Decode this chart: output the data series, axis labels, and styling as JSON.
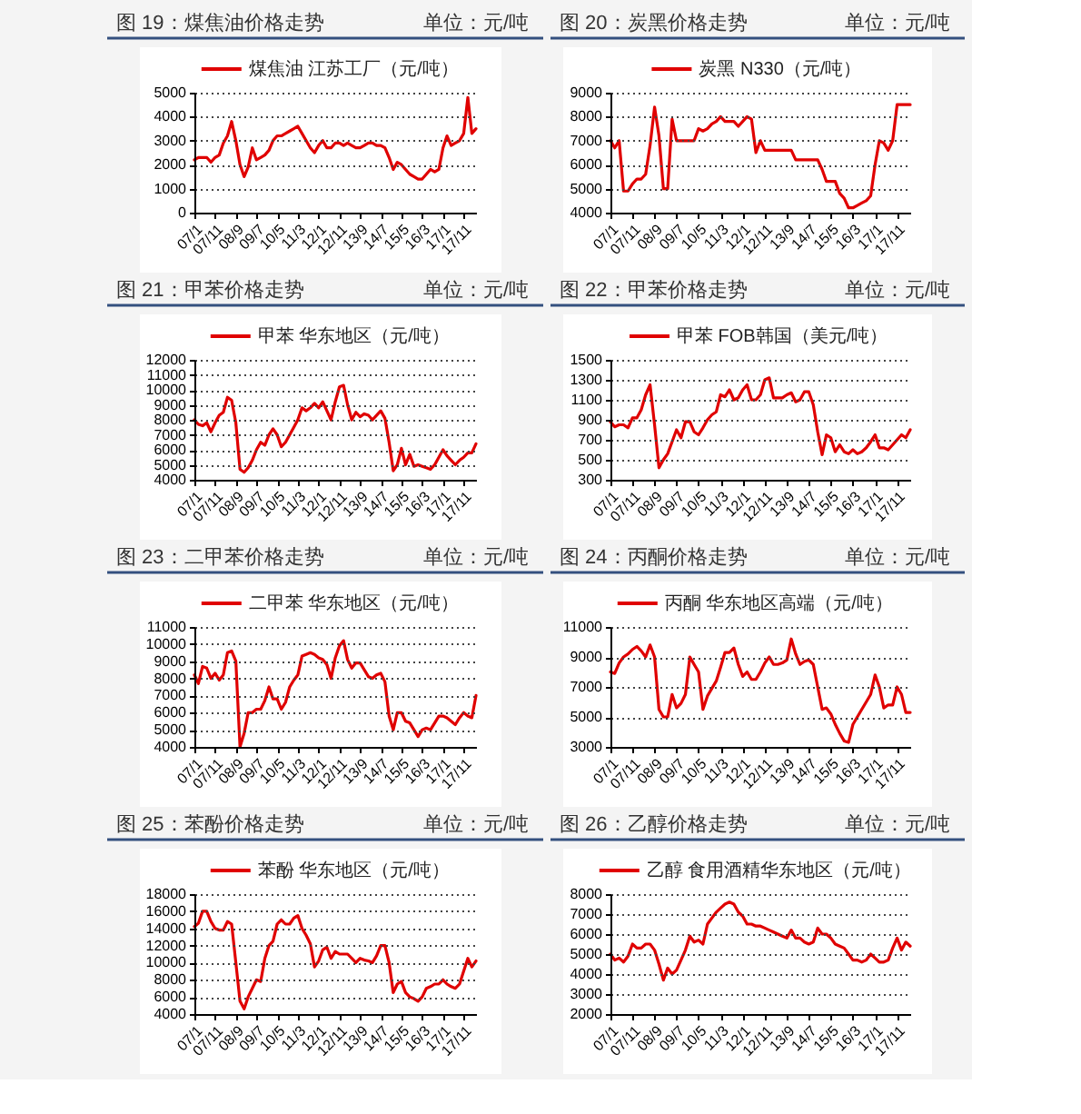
{
  "chart_data": [
    {
      "type": "line",
      "title": "图 19：煤焦油价格走势",
      "subtitle": "单位：元/吨",
      "grid": "y",
      "legend": "top",
      "x": [
        "2007-01",
        "2007-03",
        "2007-05",
        "2007-07",
        "2007-09",
        "2007-11",
        "2008-01",
        "2008-03",
        "2008-05",
        "2008-07",
        "2008-09",
        "2008-11",
        "2009-01",
        "2009-03",
        "2009-05",
        "2009-07",
        "2009-09",
        "2009-11",
        "2010-01",
        "2010-03",
        "2010-05",
        "2010-07",
        "2010-09",
        "2010-11",
        "2011-01",
        "2011-03",
        "2011-05",
        "2011-07",
        "2011-09",
        "2011-11",
        "2012-01",
        "2012-03",
        "2012-05",
        "2012-07",
        "2012-09",
        "2012-11",
        "2013-01",
        "2013-03",
        "2013-05",
        "2013-07",
        "2013-09",
        "2013-11",
        "2014-01",
        "2014-03",
        "2014-05",
        "2014-07",
        "2014-09",
        "2014-11",
        "2015-01",
        "2015-03",
        "2015-05",
        "2015-07",
        "2015-09",
        "2015-11",
        "2016-01",
        "2016-03",
        "2016-05",
        "2016-07",
        "2016-09",
        "2016-11",
        "2017-01",
        "2017-03",
        "2017-05",
        "2017-07",
        "2017-09",
        "2017-11",
        "2018-01",
        "2018-03",
        "2018-05"
      ],
      "xlim": [
        "2007-01",
        "2018-05"
      ],
      "xticks": [
        {
          "value": "2007-01",
          "label": "07/1"
        },
        {
          "value": "2007-11",
          "label": "07/11"
        },
        {
          "value": "2008-09",
          "label": "08/9"
        },
        {
          "value": "2009-07",
          "label": "09/7"
        },
        {
          "value": "2010-05",
          "label": "10/5"
        },
        {
          "value": "2011-03",
          "label": "11/3"
        },
        {
          "value": "2012-01",
          "label": "12/1"
        },
        {
          "value": "2012-11",
          "label": "12/11"
        },
        {
          "value": "2013-09",
          "label": "13/9"
        },
        {
          "value": "2014-07",
          "label": "14/7"
        },
        {
          "value": "2015-05",
          "label": "15/5"
        },
        {
          "value": "2016-03",
          "label": "16/3"
        },
        {
          "value": "2017-01",
          "label": "17/1"
        },
        {
          "value": "2017-11",
          "label": "17/11"
        }
      ],
      "ylim": [
        0,
        5000
      ],
      "yticks": [
        0,
        1000,
        2000,
        3000,
        4000,
        5000
      ],
      "series": [
        {
          "name": "煤焦油 江苏工厂（元/吨）",
          "color": "#e00000",
          "values": [
            2200,
            2300,
            2300,
            2300,
            2100,
            2300,
            2400,
            2900,
            3200,
            3800,
            3000,
            2000,
            1500,
            1900,
            2700,
            2200,
            2300,
            2400,
            2600,
            3000,
            3200,
            3200,
            3300,
            3400,
            3500,
            3600,
            3300,
            3000,
            2700,
            2500,
            2800,
            3000,
            2700,
            2700,
            2900,
            2900,
            2800,
            2900,
            2800,
            2700,
            2700,
            2800,
            2900,
            2900,
            2800,
            2800,
            2700,
            2300,
            1800,
            2100,
            2000,
            1800,
            1600,
            1500,
            1400,
            1400,
            1600,
            1800,
            1700,
            1800,
            2700,
            3200,
            2800,
            2900,
            3000,
            3300,
            4800,
            3300,
            3500
          ]
        }
      ]
    },
    {
      "type": "line",
      "title": "图 20：炭黑价格走势",
      "subtitle": "单位：元/吨",
      "grid": "y",
      "legend": "top",
      "x": [
        "2007-01",
        "2007-03",
        "2007-05",
        "2007-07",
        "2007-09",
        "2007-11",
        "2008-01",
        "2008-03",
        "2008-05",
        "2008-07",
        "2008-09",
        "2008-11",
        "2009-01",
        "2009-03",
        "2009-05",
        "2009-07",
        "2009-09",
        "2009-11",
        "2010-01",
        "2010-03",
        "2010-05",
        "2010-07",
        "2010-09",
        "2010-11",
        "2011-01",
        "2011-03",
        "2011-05",
        "2011-07",
        "2011-09",
        "2011-11",
        "2012-01",
        "2012-03",
        "2012-05",
        "2012-07",
        "2012-09",
        "2012-11",
        "2013-01",
        "2013-03",
        "2013-05",
        "2013-07",
        "2013-09",
        "2013-11",
        "2014-01",
        "2014-03",
        "2014-05",
        "2014-07",
        "2014-09",
        "2014-11",
        "2015-01",
        "2015-03",
        "2015-05",
        "2015-07",
        "2015-09",
        "2015-11",
        "2016-01",
        "2016-03",
        "2016-05",
        "2016-07",
        "2016-09",
        "2016-11",
        "2017-01",
        "2017-03",
        "2017-05",
        "2017-07",
        "2017-09",
        "2017-11",
        "2018-01",
        "2018-03",
        "2018-05"
      ],
      "xlim": [
        "2007-01",
        "2018-05"
      ],
      "xticks": [
        {
          "value": "2007-01",
          "label": "07/1"
        },
        {
          "value": "2007-11",
          "label": "07/11"
        },
        {
          "value": "2008-09",
          "label": "08/9"
        },
        {
          "value": "2009-07",
          "label": "09/7"
        },
        {
          "value": "2010-05",
          "label": "10/5"
        },
        {
          "value": "2011-03",
          "label": "11/3"
        },
        {
          "value": "2012-01",
          "label": "12/1"
        },
        {
          "value": "2012-11",
          "label": "12/11"
        },
        {
          "value": "2013-09",
          "label": "13/9"
        },
        {
          "value": "2014-07",
          "label": "14/7"
        },
        {
          "value": "2015-05",
          "label": "15/5"
        },
        {
          "value": "2016-03",
          "label": "16/3"
        },
        {
          "value": "2017-01",
          "label": "17/1"
        },
        {
          "value": "2017-11",
          "label": "17/11"
        }
      ],
      "ylim": [
        4000,
        9000
      ],
      "yticks": [
        4000,
        5000,
        6000,
        7000,
        8000,
        9000
      ],
      "series": [
        {
          "name": "炭黑 N330（元/吨）",
          "color": "#e00000",
          "values": [
            7000,
            6700,
            7000,
            4900,
            4900,
            5200,
            5400,
            5400,
            5600,
            6800,
            8400,
            7200,
            5000,
            5000,
            7900,
            7000,
            7000,
            7000,
            7000,
            7000,
            7500,
            7400,
            7500,
            7700,
            7800,
            8000,
            7800,
            7800,
            7800,
            7600,
            7800,
            8000,
            7900,
            6500,
            7000,
            6600,
            6600,
            6600,
            6600,
            6600,
            6600,
            6600,
            6200,
            6200,
            6200,
            6200,
            6200,
            6200,
            5800,
            5300,
            5300,
            5300,
            4800,
            4600,
            4200,
            4200,
            4300,
            4400,
            4500,
            4700,
            6000,
            7000,
            6900,
            6600,
            7000,
            8500,
            8500,
            8500,
            8500
          ]
        }
      ]
    },
    {
      "type": "line",
      "title": "图 21：甲苯价格走势",
      "subtitle": "单位：元/吨",
      "grid": "y",
      "legend": "top",
      "x": [
        "2007-01",
        "2007-03",
        "2007-05",
        "2007-07",
        "2007-09",
        "2007-11",
        "2008-01",
        "2008-03",
        "2008-05",
        "2008-07",
        "2008-09",
        "2008-11",
        "2009-01",
        "2009-03",
        "2009-05",
        "2009-07",
        "2009-09",
        "2009-11",
        "2010-01",
        "2010-03",
        "2010-05",
        "2010-07",
        "2010-09",
        "2010-11",
        "2011-01",
        "2011-03",
        "2011-05",
        "2011-07",
        "2011-09",
        "2011-11",
        "2012-01",
        "2012-03",
        "2012-05",
        "2012-07",
        "2012-09",
        "2012-11",
        "2013-01",
        "2013-03",
        "2013-05",
        "2013-07",
        "2013-09",
        "2013-11",
        "2014-01",
        "2014-03",
        "2014-05",
        "2014-07",
        "2014-09",
        "2014-11",
        "2015-01",
        "2015-03",
        "2015-05",
        "2015-07",
        "2015-09",
        "2015-11",
        "2016-01",
        "2016-03",
        "2016-05",
        "2016-07",
        "2016-09",
        "2016-11",
        "2017-01",
        "2017-03",
        "2017-05",
        "2017-07",
        "2017-09",
        "2017-11",
        "2018-01",
        "2018-03",
        "2018-05"
      ],
      "xlim": [
        "2007-01",
        "2018-05"
      ],
      "xticks": [
        {
          "value": "2007-01",
          "label": "07/1"
        },
        {
          "value": "2007-11",
          "label": "07/11"
        },
        {
          "value": "2008-09",
          "label": "08/9"
        },
        {
          "value": "2009-07",
          "label": "09/7"
        },
        {
          "value": "2010-05",
          "label": "10/5"
        },
        {
          "value": "2011-03",
          "label": "11/3"
        },
        {
          "value": "2012-01",
          "label": "12/1"
        },
        {
          "value": "2012-11",
          "label": "12/11"
        },
        {
          "value": "2013-09",
          "label": "13/9"
        },
        {
          "value": "2014-07",
          "label": "14/7"
        },
        {
          "value": "2015-05",
          "label": "15/5"
        },
        {
          "value": "2016-03",
          "label": "16/3"
        },
        {
          "value": "2017-01",
          "label": "17/1"
        },
        {
          "value": "2017-11",
          "label": "17/11"
        }
      ],
      "ylim": [
        4000,
        12000
      ],
      "yticks": [
        4000,
        5000,
        6000,
        7000,
        8000,
        9000,
        10000,
        11000,
        12000
      ],
      "series": [
        {
          "name": "甲苯 华东地区（元/吨）",
          "color": "#e00000",
          "values": [
            8000,
            7700,
            7600,
            7800,
            7200,
            7800,
            8300,
            8500,
            9500,
            9300,
            7800,
            4700,
            4500,
            4800,
            5300,
            6000,
            6500,
            6300,
            7000,
            7400,
            7000,
            6200,
            6500,
            7000,
            7500,
            8000,
            8800,
            8600,
            8800,
            9100,
            8800,
            9200,
            8600,
            8000,
            9200,
            10200,
            10300,
            9000,
            8000,
            8500,
            8200,
            8400,
            8300,
            8000,
            8300,
            8600,
            8100,
            6500,
            4600,
            5000,
            6100,
            5000,
            5700,
            4900,
            5000,
            4900,
            4800,
            4700,
            5000,
            5500,
            6000,
            5600,
            5300,
            5000,
            5300,
            5500,
            5800,
            5800,
            6400
          ]
        }
      ]
    },
    {
      "type": "line",
      "title": "图 22：甲苯价格走势",
      "subtitle": "单位：元/吨",
      "grid": "y",
      "legend": "top",
      "x": [
        "2007-01",
        "2007-03",
        "2007-05",
        "2007-07",
        "2007-09",
        "2007-11",
        "2008-01",
        "2008-03",
        "2008-05",
        "2008-07",
        "2008-09",
        "2008-11",
        "2009-01",
        "2009-03",
        "2009-05",
        "2009-07",
        "2009-09",
        "2009-11",
        "2010-01",
        "2010-03",
        "2010-05",
        "2010-07",
        "2010-09",
        "2010-11",
        "2011-01",
        "2011-03",
        "2011-05",
        "2011-07",
        "2011-09",
        "2011-11",
        "2012-01",
        "2012-03",
        "2012-05",
        "2012-07",
        "2012-09",
        "2012-11",
        "2013-01",
        "2013-03",
        "2013-05",
        "2013-07",
        "2013-09",
        "2013-11",
        "2014-01",
        "2014-03",
        "2014-05",
        "2014-07",
        "2014-09",
        "2014-11",
        "2015-01",
        "2015-03",
        "2015-05",
        "2015-07",
        "2015-09",
        "2015-11",
        "2016-01",
        "2016-03",
        "2016-05",
        "2016-07",
        "2016-09",
        "2016-11",
        "2017-01",
        "2017-03",
        "2017-05",
        "2017-07",
        "2017-09",
        "2017-11",
        "2018-01",
        "2018-03",
        "2018-05"
      ],
      "xlim": [
        "2007-01",
        "2018-05"
      ],
      "xticks": [
        {
          "value": "2007-01",
          "label": "07/1"
        },
        {
          "value": "2007-11",
          "label": "07/11"
        },
        {
          "value": "2008-09",
          "label": "08/9"
        },
        {
          "value": "2009-07",
          "label": "09/7"
        },
        {
          "value": "2010-05",
          "label": "10/5"
        },
        {
          "value": "2011-03",
          "label": "11/3"
        },
        {
          "value": "2012-01",
          "label": "12/1"
        },
        {
          "value": "2012-11",
          "label": "12/11"
        },
        {
          "value": "2013-09",
          "label": "13/9"
        },
        {
          "value": "2014-07",
          "label": "14/7"
        },
        {
          "value": "2015-05",
          "label": "15/5"
        },
        {
          "value": "2016-03",
          "label": "16/3"
        },
        {
          "value": "2017-01",
          "label": "17/1"
        },
        {
          "value": "2017-11",
          "label": "17/11"
        }
      ],
      "ylim": [
        300,
        1500
      ],
      "yticks": [
        300,
        500,
        700,
        900,
        1100,
        1300,
        1500
      ],
      "series": [
        {
          "name": "甲苯 FOB韩国（美元/吨）",
          "color": "#e00000",
          "values": [
            880,
            830,
            850,
            850,
            820,
            920,
            920,
            1000,
            1150,
            1250,
            850,
            420,
            500,
            560,
            680,
            800,
            720,
            880,
            880,
            780,
            750,
            820,
            900,
            950,
            980,
            1150,
            1130,
            1200,
            1100,
            1120,
            1200,
            1250,
            1100,
            1100,
            1150,
            1300,
            1320,
            1120,
            1120,
            1120,
            1150,
            1170,
            1080,
            1100,
            1180,
            1180,
            1050,
            780,
            550,
            750,
            720,
            580,
            650,
            580,
            560,
            600,
            560,
            580,
            620,
            680,
            750,
            620,
            620,
            600,
            650,
            700,
            750,
            720,
            800
          ]
        }
      ]
    },
    {
      "type": "line",
      "title": "图 23：二甲苯价格走势",
      "subtitle": "单位：元/吨",
      "grid": "y",
      "legend": "top",
      "x": [
        "2007-01",
        "2007-03",
        "2007-05",
        "2007-07",
        "2007-09",
        "2007-11",
        "2008-01",
        "2008-03",
        "2008-05",
        "2008-07",
        "2008-09",
        "2008-11",
        "2009-01",
        "2009-03",
        "2009-05",
        "2009-07",
        "2009-09",
        "2009-11",
        "2010-01",
        "2010-03",
        "2010-05",
        "2010-07",
        "2010-09",
        "2010-11",
        "2011-01",
        "2011-03",
        "2011-05",
        "2011-07",
        "2011-09",
        "2011-11",
        "2012-01",
        "2012-03",
        "2012-05",
        "2012-07",
        "2012-09",
        "2012-11",
        "2013-01",
        "2013-03",
        "2013-05",
        "2013-07",
        "2013-09",
        "2013-11",
        "2014-01",
        "2014-03",
        "2014-05",
        "2014-07",
        "2014-09",
        "2014-11",
        "2015-01",
        "2015-03",
        "2015-05",
        "2015-07",
        "2015-09",
        "2015-11",
        "2016-01",
        "2016-03",
        "2016-05",
        "2016-07",
        "2016-09",
        "2016-11",
        "2017-01",
        "2017-03",
        "2017-05",
        "2017-07",
        "2017-09",
        "2017-11",
        "2018-01",
        "2018-03",
        "2018-05"
      ],
      "xlim": [
        "2007-01",
        "2018-05"
      ],
      "xticks": [
        {
          "value": "2007-01",
          "label": "07/1"
        },
        {
          "value": "2007-11",
          "label": "07/11"
        },
        {
          "value": "2008-09",
          "label": "08/9"
        },
        {
          "value": "2009-07",
          "label": "09/7"
        },
        {
          "value": "2010-05",
          "label": "10/5"
        },
        {
          "value": "2011-03",
          "label": "11/3"
        },
        {
          "value": "2012-01",
          "label": "12/1"
        },
        {
          "value": "2012-11",
          "label": "12/11"
        },
        {
          "value": "2013-09",
          "label": "13/9"
        },
        {
          "value": "2014-07",
          "label": "14/7"
        },
        {
          "value": "2015-05",
          "label": "15/5"
        },
        {
          "value": "2016-03",
          "label": "16/3"
        },
        {
          "value": "2017-01",
          "label": "17/1"
        },
        {
          "value": "2017-11",
          "label": "17/11"
        }
      ],
      "ylim": [
        4000,
        11000
      ],
      "yticks": [
        4000,
        5000,
        6000,
        7000,
        8000,
        9000,
        10000,
        11000
      ],
      "series": [
        {
          "name": "二甲苯 华东地区（元/吨）",
          "color": "#e00000",
          "values": [
            8200,
            7700,
            8700,
            8600,
            8000,
            8300,
            7900,
            8200,
            9500,
            9600,
            9000,
            4000,
            4800,
            6000,
            6000,
            6200,
            6200,
            6700,
            7500,
            6800,
            6800,
            6200,
            6600,
            7500,
            7900,
            8200,
            9300,
            9400,
            9500,
            9400,
            9200,
            9100,
            8800,
            8000,
            9200,
            9900,
            10200,
            9100,
            8600,
            8900,
            8900,
            8500,
            8100,
            8000,
            8200,
            8300,
            7800,
            5800,
            5000,
            6000,
            6000,
            5500,
            5400,
            5000,
            4600,
            5000,
            5100,
            5000,
            5400,
            5800,
            5800,
            5700,
            5500,
            5300,
            5700,
            6000,
            5800,
            5700,
            7000
          ]
        }
      ]
    },
    {
      "type": "line",
      "title": "图 24：丙酮价格走势",
      "subtitle": "单位：元/吨",
      "grid": "y",
      "legend": "top",
      "x": [
        "2007-01",
        "2007-03",
        "2007-05",
        "2007-07",
        "2007-09",
        "2007-11",
        "2008-01",
        "2008-03",
        "2008-05",
        "2008-07",
        "2008-09",
        "2008-11",
        "2009-01",
        "2009-03",
        "2009-05",
        "2009-07",
        "2009-09",
        "2009-11",
        "2010-01",
        "2010-03",
        "2010-05",
        "2010-07",
        "2010-09",
        "2010-11",
        "2011-01",
        "2011-03",
        "2011-05",
        "2011-07",
        "2011-09",
        "2011-11",
        "2012-01",
        "2012-03",
        "2012-05",
        "2012-07",
        "2012-09",
        "2012-11",
        "2013-01",
        "2013-03",
        "2013-05",
        "2013-07",
        "2013-09",
        "2013-11",
        "2014-01",
        "2014-03",
        "2014-05",
        "2014-07",
        "2014-09",
        "2014-11",
        "2015-01",
        "2015-03",
        "2015-05",
        "2015-07",
        "2015-09",
        "2015-11",
        "2016-01",
        "2016-03",
        "2016-05",
        "2016-07",
        "2016-09",
        "2016-11",
        "2017-01",
        "2017-03",
        "2017-05",
        "2017-07",
        "2017-09",
        "2017-11",
        "2018-01",
        "2018-03",
        "2018-05"
      ],
      "xlim": [
        "2007-01",
        "2018-05"
      ],
      "xticks": [
        {
          "value": "2007-01",
          "label": "07/1"
        },
        {
          "value": "2007-11",
          "label": "07/11"
        },
        {
          "value": "2008-09",
          "label": "08/9"
        },
        {
          "value": "2009-07",
          "label": "09/7"
        },
        {
          "value": "2010-05",
          "label": "10/5"
        },
        {
          "value": "2011-03",
          "label": "11/3"
        },
        {
          "value": "2012-01",
          "label": "12/1"
        },
        {
          "value": "2012-11",
          "label": "12/11"
        },
        {
          "value": "2013-09",
          "label": "13/9"
        },
        {
          "value": "2014-07",
          "label": "14/7"
        },
        {
          "value": "2015-05",
          "label": "15/5"
        },
        {
          "value": "2016-03",
          "label": "16/3"
        },
        {
          "value": "2017-01",
          "label": "17/1"
        },
        {
          "value": "2017-11",
          "label": "17/11"
        }
      ],
      "ylim": [
        3000,
        11000
      ],
      "yticks": [
        3000,
        5000,
        7000,
        9000,
        11000
      ],
      "series": [
        {
          "name": "丙酮 华东地区高端（元/吨）",
          "color": "#e00000",
          "values": [
            8000,
            7900,
            8600,
            9000,
            9200,
            9500,
            9700,
            9400,
            9000,
            9800,
            9000,
            5500,
            5000,
            5000,
            6500,
            5600,
            5900,
            6500,
            9000,
            8500,
            8000,
            5500,
            6400,
            6900,
            7400,
            8300,
            9300,
            9300,
            9600,
            8500,
            7700,
            8000,
            7500,
            7500,
            8000,
            8600,
            9000,
            8500,
            8500,
            8600,
            8800,
            10200,
            9200,
            8500,
            8700,
            8800,
            8500,
            7000,
            5500,
            5600,
            5200,
            4500,
            3900,
            3400,
            3300,
            4500,
            5000,
            5500,
            6000,
            6500,
            7800,
            7000,
            5600,
            5800,
            5800,
            7000,
            6500,
            5300,
            5300
          ]
        }
      ]
    },
    {
      "type": "line",
      "title": "图 25：苯酚价格走势",
      "subtitle": "单位：元/吨",
      "grid": "y",
      "legend": "top",
      "x": [
        "2007-01",
        "2007-03",
        "2007-05",
        "2007-07",
        "2007-09",
        "2007-11",
        "2008-01",
        "2008-03",
        "2008-05",
        "2008-07",
        "2008-09",
        "2008-11",
        "2009-01",
        "2009-03",
        "2009-05",
        "2009-07",
        "2009-09",
        "2009-11",
        "2010-01",
        "2010-03",
        "2010-05",
        "2010-07",
        "2010-09",
        "2010-11",
        "2011-01",
        "2011-03",
        "2011-05",
        "2011-07",
        "2011-09",
        "2011-11",
        "2012-01",
        "2012-03",
        "2012-05",
        "2012-07",
        "2012-09",
        "2012-11",
        "2013-01",
        "2013-03",
        "2013-05",
        "2013-07",
        "2013-09",
        "2013-11",
        "2014-01",
        "2014-03",
        "2014-05",
        "2014-07",
        "2014-09",
        "2014-11",
        "2015-01",
        "2015-03",
        "2015-05",
        "2015-07",
        "2015-09",
        "2015-11",
        "2016-01",
        "2016-03",
        "2016-05",
        "2016-07",
        "2016-09",
        "2016-11",
        "2017-01",
        "2017-03",
        "2017-05",
        "2017-07",
        "2017-09",
        "2017-11",
        "2018-01",
        "2018-03",
        "2018-05"
      ],
      "xlim": [
        "2007-01",
        "2018-05"
      ],
      "xticks": [
        {
          "value": "2007-01",
          "label": "07/1"
        },
        {
          "value": "2007-11",
          "label": "07/11"
        },
        {
          "value": "2008-09",
          "label": "08/9"
        },
        {
          "value": "2009-07",
          "label": "09/7"
        },
        {
          "value": "2010-05",
          "label": "10/5"
        },
        {
          "value": "2011-03",
          "label": "11/3"
        },
        {
          "value": "2012-01",
          "label": "12/1"
        },
        {
          "value": "2012-11",
          "label": "12/11"
        },
        {
          "value": "2013-09",
          "label": "13/9"
        },
        {
          "value": "2014-07",
          "label": "14/7"
        },
        {
          "value": "2015-05",
          "label": "15/5"
        },
        {
          "value": "2016-03",
          "label": "16/3"
        },
        {
          "value": "2017-01",
          "label": "17/1"
        },
        {
          "value": "2017-11",
          "label": "17/11"
        }
      ],
      "ylim": [
        4000,
        18000
      ],
      "yticks": [
        4000,
        6000,
        8000,
        10000,
        12000,
        14000,
        16000,
        18000
      ],
      "series": [
        {
          "name": "苯酚 华东地区（元/吨）",
          "color": "#e00000",
          "values": [
            14200,
            14600,
            16000,
            16000,
            14800,
            14000,
            13800,
            13800,
            14800,
            14500,
            10000,
            5500,
            4600,
            6000,
            7000,
            8000,
            7800,
            10500,
            12000,
            12500,
            14500,
            15000,
            14500,
            14500,
            15200,
            15500,
            14000,
            13200,
            12200,
            9500,
            10200,
            11500,
            11800,
            10500,
            11300,
            11000,
            11000,
            11000,
            10500,
            10000,
            10500,
            10300,
            10200,
            10000,
            10800,
            12000,
            12000,
            10000,
            6500,
            7500,
            7800,
            6500,
            6000,
            5800,
            5500,
            6000,
            7000,
            7200,
            7500,
            7500,
            8000,
            7500,
            7200,
            7000,
            7500,
            9000,
            10500,
            9500,
            10200
          ]
        }
      ]
    },
    {
      "type": "line",
      "title": "图 26：乙醇价格走势",
      "subtitle": "单位：元/吨",
      "grid": "y",
      "legend": "top",
      "x": [
        "2007-01",
        "2007-03",
        "2007-05",
        "2007-07",
        "2007-09",
        "2007-11",
        "2008-01",
        "2008-03",
        "2008-05",
        "2008-07",
        "2008-09",
        "2008-11",
        "2009-01",
        "2009-03",
        "2009-05",
        "2009-07",
        "2009-09",
        "2009-11",
        "2010-01",
        "2010-03",
        "2010-05",
        "2010-07",
        "2010-09",
        "2010-11",
        "2011-01",
        "2011-03",
        "2011-05",
        "2011-07",
        "2011-09",
        "2011-11",
        "2012-01",
        "2012-03",
        "2012-05",
        "2012-07",
        "2012-09",
        "2012-11",
        "2013-01",
        "2013-03",
        "2013-05",
        "2013-07",
        "2013-09",
        "2013-11",
        "2014-01",
        "2014-03",
        "2014-05",
        "2014-07",
        "2014-09",
        "2014-11",
        "2015-01",
        "2015-03",
        "2015-05",
        "2015-07",
        "2015-09",
        "2015-11",
        "2016-01",
        "2016-03",
        "2016-05",
        "2016-07",
        "2016-09",
        "2016-11",
        "2017-01",
        "2017-03",
        "2017-05",
        "2017-07",
        "2017-09",
        "2017-11",
        "2018-01",
        "2018-03",
        "2018-05"
      ],
      "xlim": [
        "2007-01",
        "2018-05"
      ],
      "xticks": [
        {
          "value": "2007-01",
          "label": "07/1"
        },
        {
          "value": "2007-11",
          "label": "07/11"
        },
        {
          "value": "2008-09",
          "label": "08/9"
        },
        {
          "value": "2009-07",
          "label": "09/7"
        },
        {
          "value": "2010-05",
          "label": "10/5"
        },
        {
          "value": "2011-03",
          "label": "11/3"
        },
        {
          "value": "2012-01",
          "label": "12/1"
        },
        {
          "value": "2012-11",
          "label": "12/11"
        },
        {
          "value": "2013-09",
          "label": "13/9"
        },
        {
          "value": "2014-07",
          "label": "14/7"
        },
        {
          "value": "2015-05",
          "label": "15/5"
        },
        {
          "value": "2016-03",
          "label": "16/3"
        },
        {
          "value": "2017-01",
          "label": "17/1"
        },
        {
          "value": "2017-11",
          "label": "17/11"
        }
      ],
      "ylim": [
        2000,
        8000
      ],
      "yticks": [
        2000,
        3000,
        4000,
        5000,
        6000,
        7000,
        8000
      ],
      "series": [
        {
          "name": "乙醇 食用酒精华东地区（元/吨）",
          "color": "#e00000",
          "values": [
            5000,
            4700,
            4800,
            4600,
            4900,
            5500,
            5300,
            5300,
            5500,
            5500,
            5200,
            4500,
            3700,
            4300,
            4000,
            4200,
            4700,
            5200,
            5900,
            5600,
            5700,
            5500,
            6500,
            6800,
            7100,
            7300,
            7500,
            7600,
            7500,
            7100,
            6900,
            6500,
            6500,
            6400,
            6400,
            6300,
            6200,
            6100,
            6000,
            5900,
            5800,
            6200,
            5800,
            5800,
            5600,
            5500,
            5600,
            6300,
            6000,
            6000,
            5800,
            5500,
            5400,
            5300,
            5000,
            4700,
            4700,
            4600,
            4700,
            5000,
            4800,
            4600,
            4600,
            4700,
            5300,
            5800,
            5200,
            5600,
            5400
          ]
        }
      ]
    }
  ]
}
